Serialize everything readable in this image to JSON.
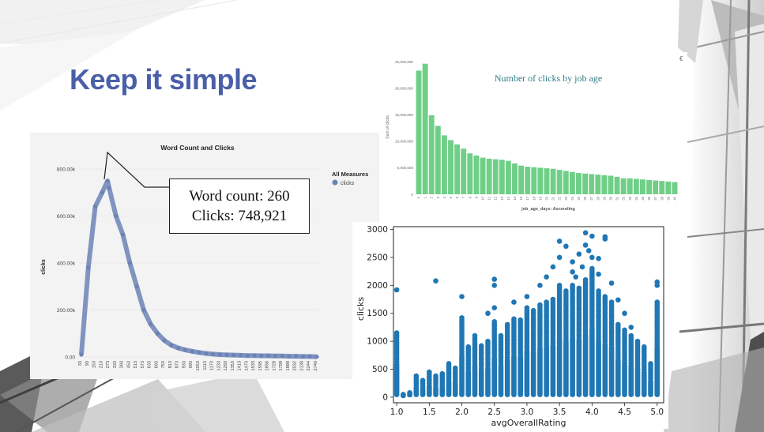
{
  "slide": {
    "title": "Keep it simple"
  },
  "callout": {
    "line1": "Word count: 260",
    "line2": "Clicks: 748,921"
  },
  "chart_data": [
    {
      "type": "line",
      "title": "Word Count and Clicks",
      "xlabel": "",
      "ylabel": "clicks",
      "legend": {
        "title": "All Measures",
        "entries": [
          "clicks"
        ],
        "placement": "right"
      },
      "series_color": "#6b82b5",
      "y_ticks": [
        "0.00",
        "200.00k",
        "400.00k",
        "600.00k",
        "800.00k"
      ],
      "ylim": [
        0,
        800000
      ],
      "x_ticks": [
        "33",
        "93",
        "153",
        "213",
        "273",
        "333",
        "393",
        "453",
        "513",
        "573",
        "633",
        "693",
        "753",
        "813",
        "873",
        "933",
        "993",
        "1053",
        "1113",
        "1173",
        "1233",
        "1293",
        "1353",
        "1413",
        "1473",
        "1533",
        "1595",
        "1656",
        "1728",
        "1799",
        "1888",
        "2032",
        "2138",
        "2244",
        "2740"
      ],
      "x": [
        33,
        93,
        153,
        213,
        260,
        273,
        333,
        393,
        453,
        513,
        573,
        633,
        693,
        753,
        813,
        873,
        933,
        993,
        1053,
        1113,
        1173,
        1233,
        1293,
        1353,
        1413,
        1473,
        1533,
        1595,
        1656,
        1728,
        1799,
        1888,
        2032,
        2138,
        2244,
        2740
      ],
      "values": [
        10000,
        380000,
        640000,
        700000,
        748921,
        720000,
        600000,
        520000,
        400000,
        300000,
        200000,
        140000,
        100000,
        70000,
        50000,
        38000,
        30000,
        24000,
        19000,
        15000,
        12000,
        10000,
        9000,
        8000,
        7000,
        6000,
        6000,
        5000,
        5000,
        4000,
        4000,
        3000,
        3000,
        2000,
        2000,
        1000
      ]
    },
    {
      "type": "bar",
      "title": "Number of clicks by job age",
      "xlabel": "job_age_days: Ascending",
      "ylabel": "Sum of clicks",
      "bar_color": "#6fcf87",
      "ylim": [
        0,
        25000000
      ],
      "y_ticks": [
        "0",
        "5,000,000",
        "10,000,000",
        "15,000,000",
        "20,000,000",
        "25,000,000"
      ],
      "categories": [
        "0",
        "1",
        "2",
        "3",
        "4",
        "5",
        "6",
        "7",
        "8",
        "9",
        "10",
        "11",
        "12",
        "13",
        "14",
        "15",
        "16",
        "17",
        "18",
        "19",
        "20",
        "21",
        "22",
        "23",
        "24",
        "25",
        "26",
        "27",
        "28",
        "29",
        "30",
        "31",
        "32",
        "33",
        "34",
        "35",
        "36",
        "37",
        "38",
        "39",
        "40"
      ],
      "values": [
        23300000,
        24600000,
        14900000,
        12900000,
        11100000,
        10200000,
        9400000,
        8600000,
        7700000,
        7300000,
        6900000,
        6700000,
        6600000,
        6500000,
        6300000,
        5800000,
        5400000,
        5200000,
        5100000,
        5000000,
        4900000,
        4800000,
        4600000,
        4400000,
        4200000,
        4000000,
        3900000,
        3800000,
        3700000,
        3600000,
        3500000,
        3300000,
        3000000,
        3000000,
        2900000,
        2800000,
        2700000,
        2600000,
        2500000,
        2400000,
        2300000
      ]
    },
    {
      "type": "scatter",
      "title": "",
      "xlabel": "avgOverallRating",
      "ylabel": "clicks",
      "point_color": "#1f77b4",
      "xlim": [
        0.95,
        5.1
      ],
      "ylim": [
        -100,
        3050
      ],
      "x_ticks": [
        "1.0",
        "1.5",
        "2.0",
        "2.5",
        "3.0",
        "3.5",
        "4.0",
        "4.5",
        "5.0"
      ],
      "y_ticks": [
        "0",
        "500",
        "1000",
        "1500",
        "2000",
        "2500",
        "3000"
      ],
      "columns": [
        {
          "x": 1.0,
          "top": 1150
        },
        {
          "x": 1.1,
          "top": 50
        },
        {
          "x": 1.2,
          "top": 80
        },
        {
          "x": 1.3,
          "top": 380
        },
        {
          "x": 1.4,
          "top": 300
        },
        {
          "x": 1.5,
          "top": 450
        },
        {
          "x": 1.6,
          "top": 380
        },
        {
          "x": 1.7,
          "top": 420
        },
        {
          "x": 1.8,
          "top": 600
        },
        {
          "x": 1.9,
          "top": 520
        },
        {
          "x": 2.0,
          "top": 1420
        },
        {
          "x": 2.1,
          "top": 900
        },
        {
          "x": 2.2,
          "top": 1100
        },
        {
          "x": 2.3,
          "top": 920
        },
        {
          "x": 2.4,
          "top": 1000
        },
        {
          "x": 2.5,
          "top": 1350
        },
        {
          "x": 2.6,
          "top": 1100
        },
        {
          "x": 2.7,
          "top": 1300
        },
        {
          "x": 2.8,
          "top": 1400
        },
        {
          "x": 2.9,
          "top": 1380
        },
        {
          "x": 3.0,
          "top": 1600
        },
        {
          "x": 3.1,
          "top": 1550
        },
        {
          "x": 3.2,
          "top": 1650
        },
        {
          "x": 3.3,
          "top": 1700
        },
        {
          "x": 3.4,
          "top": 1750
        },
        {
          "x": 3.5,
          "top": 2000
        },
        {
          "x": 3.6,
          "top": 1900
        },
        {
          "x": 3.7,
          "top": 2000
        },
        {
          "x": 3.8,
          "top": 1950
        },
        {
          "x": 3.9,
          "top": 2100
        },
        {
          "x": 4.0,
          "top": 2300
        },
        {
          "x": 4.1,
          "top": 1900
        },
        {
          "x": 4.2,
          "top": 1800
        },
        {
          "x": 4.3,
          "top": 1700
        },
        {
          "x": 4.4,
          "top": 1300
        },
        {
          "x": 4.5,
          "top": 1200
        },
        {
          "x": 4.6,
          "top": 1100
        },
        {
          "x": 4.7,
          "top": 1000
        },
        {
          "x": 4.8,
          "top": 900
        },
        {
          "x": 4.9,
          "top": 600
        },
        {
          "x": 5.0,
          "top": 1700
        }
      ],
      "outliers": [
        {
          "x": 1.0,
          "y": 1920
        },
        {
          "x": 1.6,
          "y": 2080
        },
        {
          "x": 2.0,
          "y": 1800
        },
        {
          "x": 2.5,
          "y": 2110
        },
        {
          "x": 2.5,
          "y": 2000
        },
        {
          "x": 2.5,
          "y": 1600
        },
        {
          "x": 2.4,
          "y": 1500
        },
        {
          "x": 2.8,
          "y": 1700
        },
        {
          "x": 3.0,
          "y": 1800
        },
        {
          "x": 3.2,
          "y": 2000
        },
        {
          "x": 3.3,
          "y": 2150
        },
        {
          "x": 3.4,
          "y": 2330
        },
        {
          "x": 3.5,
          "y": 2500
        },
        {
          "x": 3.6,
          "y": 2700
        },
        {
          "x": 3.5,
          "y": 2790
        },
        {
          "x": 3.7,
          "y": 2420
        },
        {
          "x": 3.7,
          "y": 2240
        },
        {
          "x": 3.8,
          "y": 2560
        },
        {
          "x": 3.9,
          "y": 2720
        },
        {
          "x": 3.9,
          "y": 2940
        },
        {
          "x": 4.0,
          "y": 2880
        },
        {
          "x": 4.0,
          "y": 2500
        },
        {
          "x": 3.95,
          "y": 2620
        },
        {
          "x": 4.1,
          "y": 2200
        },
        {
          "x": 4.2,
          "y": 2830
        },
        {
          "x": 4.2,
          "y": 2870
        },
        {
          "x": 4.3,
          "y": 2040
        },
        {
          "x": 4.4,
          "y": 1740
        },
        {
          "x": 4.5,
          "y": 1500
        },
        {
          "x": 4.6,
          "y": 1250
        },
        {
          "x": 5.0,
          "y": 2060
        },
        {
          "x": 5.0,
          "y": 2000
        },
        {
          "x": 4.1,
          "y": 2480
        },
        {
          "x": 3.85,
          "y": 2330
        },
        {
          "x": 3.75,
          "y": 2150
        }
      ]
    }
  ],
  "page_marker": "€"
}
